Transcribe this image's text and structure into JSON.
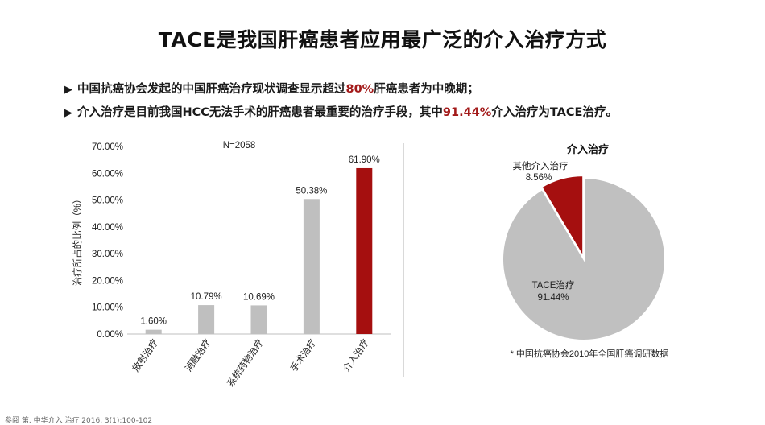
{
  "title": "TACE是我国肝癌患者应用最广泛的介入治疗方式",
  "bullets": [
    {
      "before": "中国抗癌协会发起的中国肝癌治疗现状调查显示超过",
      "highlight": "80%",
      "after": "肝癌患者为中晚期；"
    },
    {
      "before": "介入治疗是目前我国HCC无法手术的肝癌患者最重要的治疗手段，其中",
      "highlight": "91.44%",
      "after": "介入治疗为TACE治疗。"
    }
  ],
  "bullet_marker": "▶",
  "footnote": "参阅 第. 中华介入 治疗 2016, 3(1):100-102",
  "chart_data": [
    {
      "type": "bar",
      "annotation": "N=2058",
      "ylabel": "治疗所占的比例（%）",
      "ylim": [
        0,
        70
      ],
      "yticks": [
        0,
        10,
        20,
        30,
        40,
        50,
        60,
        70
      ],
      "ytick_labels": [
        "0.00%",
        "10.00%",
        "20.00%",
        "30.00%",
        "40.00%",
        "50.00%",
        "60.00%",
        "70.00%"
      ],
      "categories": [
        "放射治疗",
        "消融治疗",
        "系统药物治疗",
        "手术治疗",
        "介入治疗"
      ],
      "values": [
        1.6,
        10.79,
        10.69,
        50.38,
        61.9
      ],
      "value_labels": [
        "1.60%",
        "10.79%",
        "10.69%",
        "50.38%",
        "61.90%"
      ],
      "colors": [
        "#bfbfbf",
        "#bfbfbf",
        "#bfbfbf",
        "#bfbfbf",
        "#a50f0f"
      ],
      "grid": false
    },
    {
      "type": "pie",
      "title": "介入治疗",
      "slices": [
        {
          "label": "TACE治疗",
          "value": 91.44,
          "value_label": "91.44%",
          "color": "#c0c0c0"
        },
        {
          "label": "其他介入治疗",
          "value": 8.56,
          "value_label": "8.56%",
          "color": "#a50f0f"
        }
      ],
      "note": "* 中国抗癌协会2010年全国肝癌调研数据"
    }
  ]
}
